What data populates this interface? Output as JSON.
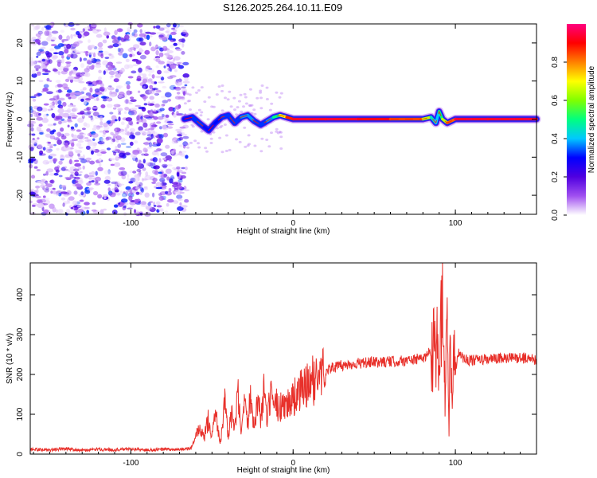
{
  "figure": {
    "title": "S126.2025.264.10.11.E09"
  },
  "chart_data": [
    {
      "type": "heatmap",
      "name": "spectrogram",
      "xlabel": "Height of straight line (km)",
      "ylabel": "Frequency (Hz)",
      "xlim": [
        -162,
        150
      ],
      "ylim": [
        -25,
        25
      ],
      "xticks": [
        -100,
        0,
        100
      ],
      "yticks": [
        -20,
        -10,
        0,
        10,
        20
      ],
      "colorbar": {
        "label": "Normalized spectral amplitude",
        "range": [
          0,
          1
        ],
        "ticks": [
          0.0,
          0.2,
          0.4,
          0.6,
          0.8
        ],
        "colormap": [
          "#ffffff",
          "#a050f0",
          "#5000e0",
          "#0000ff",
          "#00c8ff",
          "#00ff80",
          "#80ff00",
          "#ffff00",
          "#ff8000",
          "#ff0000",
          "#ff0080"
        ]
      },
      "noise_region_x": [
        -162,
        -67
      ],
      "signal_trace": {
        "x": [
          -67,
          -62,
          -58,
          -55,
          -52,
          -48,
          -44,
          -40,
          -36,
          -32,
          -28,
          -24,
          -20,
          -16,
          -12,
          -8,
          -4,
          0,
          20,
          40,
          60,
          80,
          85,
          88,
          90,
          92,
          95,
          100,
          120,
          150
        ],
        "y": [
          0,
          0.5,
          -1,
          -2,
          -3,
          -1,
          0.5,
          1,
          -1,
          0.5,
          1,
          -0.5,
          -1.5,
          -0.5,
          0.5,
          1,
          0.5,
          0,
          0,
          0,
          0,
          0,
          0.5,
          -1,
          2,
          0,
          -1,
          0,
          0,
          0
        ],
        "amplitude": [
          0.2,
          0.3,
          0.35,
          0.3,
          0.25,
          0.3,
          0.3,
          0.35,
          0.3,
          0.35,
          0.4,
          0.35,
          0.3,
          0.35,
          0.4,
          0.6,
          0.8,
          0.95,
          0.95,
          0.95,
          0.9,
          0.8,
          0.5,
          0.4,
          0.4,
          0.6,
          0.7,
          0.95,
          0.95,
          0.95
        ]
      }
    },
    {
      "type": "line",
      "name": "snr",
      "xlabel": "Height of straight line (km)",
      "ylabel": "SNR (10 * v/v)",
      "xlim": [
        -162,
        150
      ],
      "ylim": [
        0,
        480
      ],
      "xticks": [
        -100,
        0,
        100
      ],
      "yticks": [
        0,
        100,
        200,
        300,
        400
      ],
      "color": "#e8302a",
      "series": [
        {
          "name": "SNR",
          "x": [
            -162,
            -150,
            -140,
            -130,
            -120,
            -110,
            -100,
            -90,
            -80,
            -70,
            -63,
            -58,
            -55,
            -52,
            -50,
            -48,
            -45,
            -42,
            -40,
            -38,
            -36,
            -34,
            -32,
            -30,
            -28,
            -26,
            -24,
            -22,
            -20,
            -18,
            -16,
            -14,
            -12,
            -10,
            -8,
            -6,
            -4,
            -2,
            0,
            5,
            10,
            15,
            20,
            25,
            30,
            40,
            50,
            60,
            70,
            80,
            85,
            88,
            90,
            92,
            94,
            95,
            96,
            97,
            98,
            99,
            100,
            102,
            105,
            110,
            120,
            130,
            140,
            150
          ],
          "y": [
            12,
            10,
            14,
            9,
            12,
            11,
            13,
            10,
            12,
            11,
            15,
            60,
            40,
            90,
            50,
            110,
            30,
            130,
            40,
            100,
            60,
            150,
            45,
            120,
            70,
            180,
            55,
            140,
            90,
            160,
            75,
            150,
            100,
            130,
            110,
            140,
            120,
            135,
            140,
            160,
            175,
            195,
            210,
            218,
            222,
            228,
            230,
            232,
            235,
            240,
            260,
            300,
            200,
            380,
            120,
            460,
            60,
            330,
            150,
            280,
            210,
            260,
            240,
            235,
            238,
            240,
            242,
            238
          ]
        }
      ]
    }
  ]
}
